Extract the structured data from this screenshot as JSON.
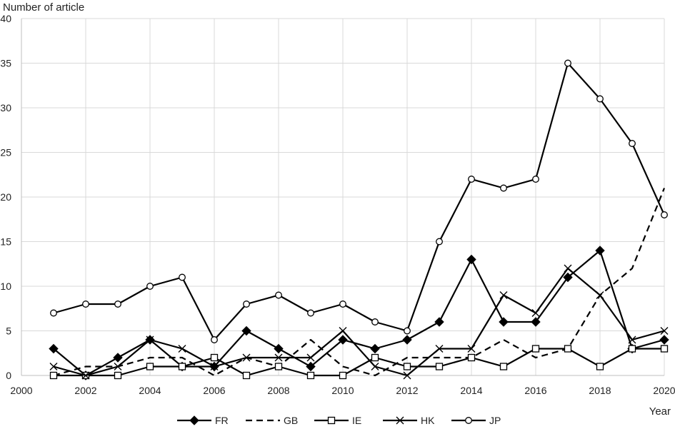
{
  "chart_data": {
    "type": "line",
    "title": "",
    "ylabel": "Number of article",
    "xlabel": "Year",
    "xlim": [
      2000,
      2020
    ],
    "ylim": [
      0,
      40
    ],
    "x_ticks": [
      2000,
      2002,
      2004,
      2006,
      2008,
      2010,
      2012,
      2014,
      2016,
      2018,
      2020
    ],
    "y_ticks": [
      0,
      5,
      10,
      15,
      20,
      25,
      30,
      35,
      40
    ],
    "grid": true,
    "legend_position": "bottom",
    "x": [
      2001,
      2002,
      2003,
      2004,
      2005,
      2006,
      2007,
      2008,
      2009,
      2010,
      2011,
      2012,
      2013,
      2014,
      2015,
      2016,
      2017,
      2018,
      2019,
      2020
    ],
    "series": [
      {
        "name": "FR",
        "marker": "filled-diamond",
        "dash": "solid",
        "color": "#000000",
        "values": [
          3,
          0,
          2,
          4,
          1,
          1,
          5,
          3,
          1,
          4,
          3,
          4,
          6,
          13,
          6,
          6,
          11,
          14,
          3,
          4
        ]
      },
      {
        "name": "GB",
        "marker": "none",
        "dash": "dashed",
        "color": "#000000",
        "values": [
          0,
          1,
          1,
          2,
          2,
          0,
          2,
          1,
          4,
          1,
          0,
          2,
          2,
          2,
          4,
          2,
          3,
          9,
          12,
          21
        ]
      },
      {
        "name": "IE",
        "marker": "open-square",
        "dash": "solid",
        "color": "#000000",
        "values": [
          0,
          0,
          0,
          1,
          1,
          2,
          0,
          1,
          0,
          0,
          2,
          1,
          1,
          2,
          1,
          3,
          3,
          1,
          3,
          3
        ]
      },
      {
        "name": "HK",
        "marker": "x-cross",
        "dash": "solid",
        "color": "#000000",
        "values": [
          1,
          0,
          1,
          4,
          3,
          1,
          2,
          2,
          2,
          5,
          1,
          0,
          3,
          3,
          9,
          7,
          12,
          9,
          4,
          5
        ]
      },
      {
        "name": "JP",
        "marker": "open-circle",
        "dash": "solid",
        "color": "#000000",
        "values": [
          7,
          8,
          8,
          10,
          11,
          4,
          8,
          9,
          7,
          8,
          6,
          5,
          15,
          22,
          21,
          22,
          35,
          31,
          26,
          18
        ]
      }
    ]
  }
}
